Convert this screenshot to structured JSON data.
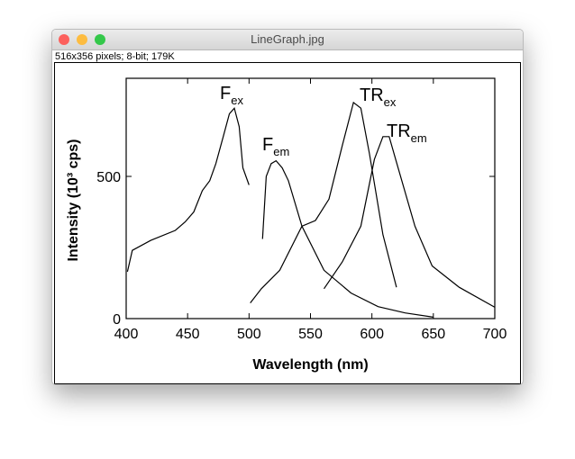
{
  "window": {
    "title": "LineGraph.jpg",
    "info": "516x356 pixels; 8-bit; 179K"
  },
  "chart_data": {
    "type": "line",
    "xlabel": "Wavelength (nm)",
    "ylabel": "Intensity (10³ cps)",
    "xlim": [
      400,
      700
    ],
    "ylim": [
      0,
      845
    ],
    "xticks": [
      400,
      450,
      500,
      550,
      600,
      650,
      700
    ],
    "yticks": [
      0,
      500
    ],
    "color": "#000000",
    "series": [
      {
        "name": "F",
        "sub": "ex",
        "x": [
          401,
          405,
          420,
          440,
          448,
          455,
          462,
          468,
          473,
          479,
          484,
          488,
          492,
          495,
          500
        ],
        "values": [
          165,
          240,
          275,
          310,
          340,
          375,
          450,
          485,
          545,
          640,
          720,
          740,
          675,
          530,
          470
        ]
      },
      {
        "name": "F",
        "sub": "em",
        "x": [
          511,
          514,
          518,
          522,
          527,
          532,
          543,
          561,
          583,
          605,
          627,
          650
        ],
        "values": [
          280,
          500,
          545,
          555,
          530,
          485,
          325,
          170,
          90,
          42,
          20,
          5
        ]
      },
      {
        "name": "TR",
        "sub": "ex",
        "x": [
          501,
          510,
          525,
          543,
          554,
          565,
          576,
          585,
          591,
          598,
          609,
          620
        ],
        "values": [
          55,
          105,
          170,
          325,
          345,
          420,
          610,
          760,
          740,
          580,
          295,
          110
        ]
      },
      {
        "name": "TR",
        "sub": "em",
        "x": [
          561,
          576,
          591,
          602,
          609,
          614,
          620,
          635,
          649,
          671,
          700
        ],
        "values": [
          105,
          200,
          325,
          560,
          640,
          640,
          550,
          325,
          185,
          110,
          40
        ]
      }
    ]
  }
}
